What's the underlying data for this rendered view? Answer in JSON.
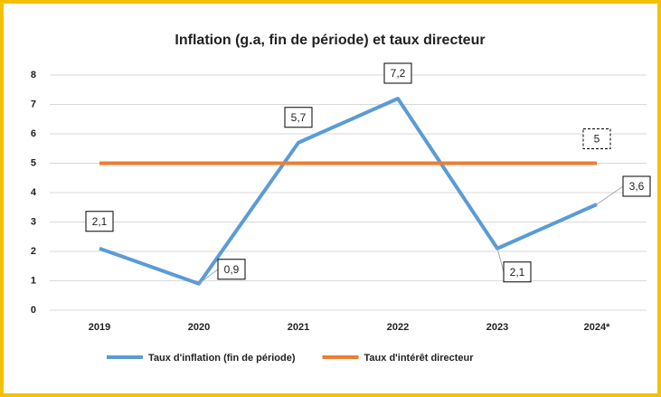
{
  "chart_data": {
    "type": "line",
    "title": "Inflation (g.a, fin de période) et taux directeur",
    "categories": [
      "2019",
      "2020",
      "2021",
      "2022",
      "2023",
      "2024*"
    ],
    "series": [
      {
        "name": "Taux d'inflation (fin de période)",
        "color": "#5b9bd5",
        "values": [
          2.1,
          0.9,
          5.7,
          7.2,
          2.1,
          3.6
        ],
        "value_labels": [
          "2,1",
          "0,9",
          "5,7",
          "7,2",
          "2,1",
          "3,6"
        ]
      },
      {
        "name": "Taux d'intérêt directeur",
        "color": "#ed7d31",
        "values": [
          5,
          5,
          5,
          5,
          5,
          5
        ],
        "value_labels": [
          null,
          null,
          null,
          null,
          null,
          "5"
        ]
      }
    ],
    "ylim": [
      0,
      8
    ],
    "yticks": [
      0,
      1,
      2,
      3,
      4,
      5,
      6,
      7,
      8
    ],
    "grid": true,
    "legend": "bottom"
  }
}
